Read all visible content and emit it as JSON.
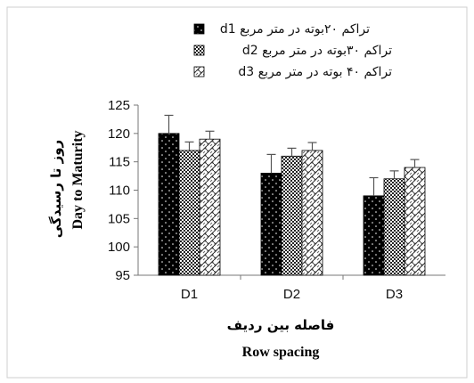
{
  "chart_data": {
    "type": "bar",
    "categories": [
      "D1",
      "D2",
      "D3"
    ],
    "series": [
      {
        "name": "d1 تراکم ۲۰بوته در متر مربع",
        "values": [
          120,
          113,
          109
        ],
        "errors": [
          3.2,
          3.3,
          3.2
        ],
        "pattern": "dots"
      },
      {
        "name": "d2 تراکم ۳۰بوته در متر مربع",
        "values": [
          117,
          116,
          112
        ],
        "errors": [
          1.5,
          1.4,
          1.4
        ],
        "pattern": "grid"
      },
      {
        "name": "d3 تراکم ۴۰ بوته در متر مربع",
        "values": [
          119,
          117,
          114
        ],
        "errors": [
          1.4,
          1.4,
          1.4
        ],
        "pattern": "weave"
      }
    ],
    "yticks": [
      95,
      100,
      105,
      110,
      115,
      120,
      125
    ],
    "ylim": [
      95,
      125
    ],
    "ylabel_fa": "روز تا رسیدگی",
    "ylabel_en": "Day to Maturity",
    "xlabel_fa": "فاصله بین ردیف",
    "xlabel_en": "Row spacing",
    "legend_position": "top-right",
    "grid": false
  }
}
